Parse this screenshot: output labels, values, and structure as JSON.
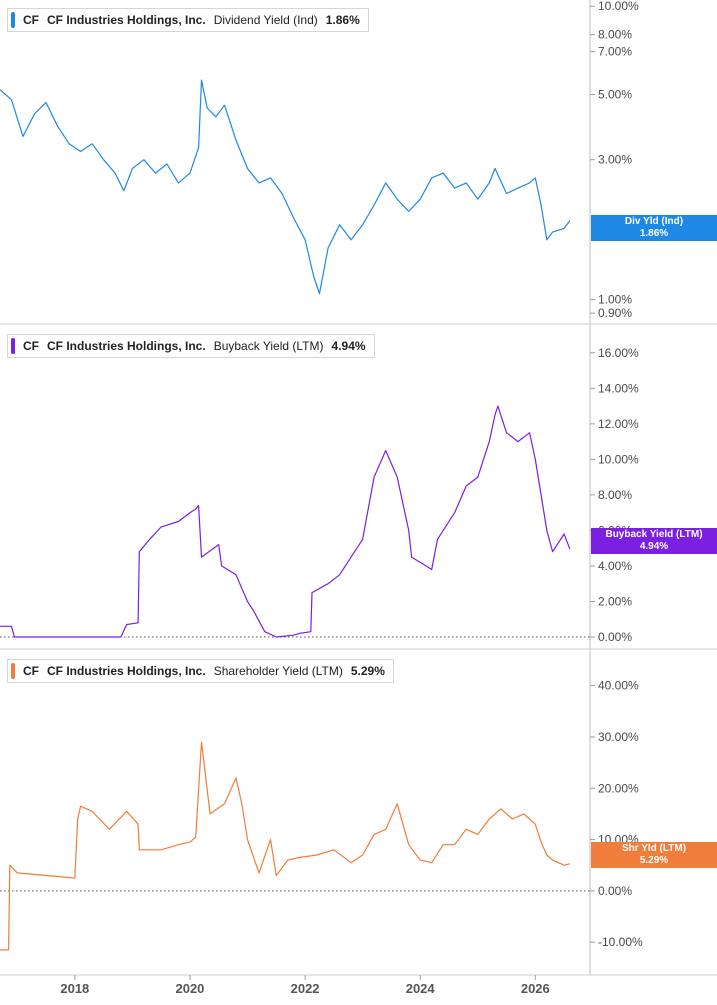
{
  "chart_data": [
    {
      "type": "line",
      "legend": {
        "ticker": "CF",
        "company": "CF Industries Holdings, Inc.",
        "metric": "Dividend Yield (Ind)",
        "value": "1.86%"
      },
      "badge": {
        "label": "Div Yld (Ind)",
        "value": "1.86%"
      },
      "color": "#1e88e5",
      "y_scale": "log",
      "ylim": [
        0.88,
        10.5
      ],
      "yticks": [
        0.9,
        1,
        3,
        5,
        7,
        8,
        10
      ],
      "ytick_labels": [
        "0.90%",
        "1.00%",
        "3.00%",
        "5.00%",
        "7.00%",
        "8.00%",
        "10.00%"
      ],
      "x": [
        2016.7,
        2016.9,
        2017.1,
        2017.3,
        2017.5,
        2017.7,
        2017.9,
        2018.1,
        2018.3,
        2018.5,
        2018.7,
        2018.85,
        2019.0,
        2019.2,
        2019.4,
        2019.6,
        2019.8,
        2020.0,
        2020.15,
        2020.2,
        2020.3,
        2020.45,
        2020.6,
        2020.8,
        2021.0,
        2021.2,
        2021.4,
        2021.6,
        2021.8,
        2022.0,
        2022.15,
        2022.25,
        2022.4,
        2022.6,
        2022.8,
        2023.0,
        2023.2,
        2023.4,
        2023.6,
        2023.8,
        2024.0,
        2024.2,
        2024.4,
        2024.6,
        2024.8,
        2025.0,
        2025.2,
        2025.3,
        2025.5,
        2025.7,
        2025.9,
        2026.0,
        2026.1,
        2026.2,
        2026.3,
        2026.5,
        2026.6
      ],
      "y": [
        5.2,
        4.8,
        3.6,
        4.3,
        4.7,
        3.9,
        3.4,
        3.2,
        3.4,
        3.0,
        2.7,
        2.35,
        2.8,
        3.0,
        2.7,
        2.9,
        2.5,
        2.7,
        3.3,
        5.6,
        4.5,
        4.2,
        4.6,
        3.5,
        2.8,
        2.5,
        2.6,
        2.3,
        1.9,
        1.6,
        1.2,
        1.05,
        1.5,
        1.8,
        1.6,
        1.8,
        2.1,
        2.5,
        2.2,
        2.0,
        2.2,
        2.6,
        2.7,
        2.4,
        2.5,
        2.2,
        2.5,
        2.8,
        2.3,
        2.4,
        2.5,
        2.6,
        2.1,
        1.6,
        1.7,
        1.75,
        1.86
      ]
    },
    {
      "type": "line",
      "legend": {
        "ticker": "CF",
        "company": "CF Industries Holdings, Inc.",
        "metric": "Buyback Yield (LTM)",
        "value": "4.94%"
      },
      "badge": {
        "label": "Buyback Yield (LTM)",
        "value": "4.94%"
      },
      "color": "#7b1fe0",
      "y_scale": "linear",
      "ylim": [
        0,
        17
      ],
      "yticks": [
        0,
        2,
        4,
        6,
        8,
        10,
        12,
        14,
        16
      ],
      "ytick_labels": [
        "0.00%",
        "2.00%",
        "4.00%",
        "6.00%",
        "8.00%",
        "10.00%",
        "12.00%",
        "14.00%",
        "16.00%"
      ],
      "zero_line": true,
      "x": [
        2016.7,
        2016.9,
        2016.95,
        2017.5,
        2018.0,
        2018.5,
        2018.8,
        2018.9,
        2019.1,
        2019.12,
        2019.3,
        2019.5,
        2019.8,
        2020.0,
        2020.1,
        2020.15,
        2020.2,
        2020.5,
        2020.55,
        2020.8,
        2021.0,
        2021.1,
        2021.3,
        2021.5,
        2021.8,
        2021.9,
        2022.1,
        2022.12,
        2022.4,
        2022.6,
        2022.8,
        2023.0,
        2023.2,
        2023.4,
        2023.6,
        2023.8,
        2023.85,
        2024.1,
        2024.2,
        2024.3,
        2024.6,
        2024.8,
        2025.0,
        2025.2,
        2025.3,
        2025.35,
        2025.5,
        2025.7,
        2025.9,
        2026.0,
        2026.1,
        2026.2,
        2026.3,
        2026.5,
        2026.6
      ],
      "y": [
        0.6,
        0.6,
        0.0,
        0.0,
        0.0,
        0.0,
        0.0,
        0.7,
        0.8,
        4.8,
        5.5,
        6.2,
        6.5,
        7.0,
        7.2,
        7.4,
        4.5,
        5.2,
        4.0,
        3.5,
        2.0,
        1.5,
        0.3,
        0.0,
        0.1,
        0.2,
        0.3,
        2.5,
        3.0,
        3.5,
        4.5,
        5.5,
        9.0,
        10.5,
        9.0,
        6.0,
        4.5,
        4.0,
        3.8,
        5.5,
        7.0,
        8.5,
        9.0,
        11.0,
        12.5,
        13.0,
        11.5,
        11.0,
        11.5,
        10.0,
        8.0,
        6.0,
        4.8,
        5.8,
        4.94
      ]
    },
    {
      "type": "line",
      "legend": {
        "ticker": "CF",
        "company": "CF Industries Holdings, Inc.",
        "metric": "Shareholder Yield (LTM)",
        "value": "5.29%"
      },
      "badge": {
        "label": "Shr Yld (LTM)",
        "value": "5.29%"
      },
      "color": "#f07d3a",
      "y_scale": "linear",
      "ylim": [
        -12.5,
        45
      ],
      "yticks": [
        -10,
        0,
        10,
        20,
        30,
        40
      ],
      "ytick_labels": [
        "-10.00%",
        "0.00%",
        "10.00%",
        "20.00%",
        "30.00%",
        "40.00%"
      ],
      "zero_line": true,
      "x": [
        2016.7,
        2016.85,
        2016.87,
        2017.0,
        2017.5,
        2018.0,
        2018.05,
        2018.1,
        2018.3,
        2018.6,
        2018.9,
        2019.1,
        2019.12,
        2019.5,
        2019.8,
        2020.0,
        2020.1,
        2020.2,
        2020.35,
        2020.6,
        2020.8,
        2020.9,
        2021.0,
        2021.2,
        2021.4,
        2021.5,
        2021.7,
        2021.9,
        2022.2,
        2022.5,
        2022.8,
        2023.0,
        2023.2,
        2023.4,
        2023.6,
        2023.8,
        2024.0,
        2024.2,
        2024.4,
        2024.6,
        2024.8,
        2025.0,
        2025.2,
        2025.4,
        2025.6,
        2025.8,
        2026.0,
        2026.1,
        2026.2,
        2026.3,
        2026.5,
        2026.6
      ],
      "y": [
        -11.5,
        -11.5,
        5.0,
        3.5,
        3.0,
        2.5,
        14.0,
        16.5,
        15.5,
        12.0,
        15.5,
        13.0,
        8.0,
        8.0,
        9.0,
        9.5,
        10.5,
        29.0,
        15.0,
        17.0,
        22.0,
        17.0,
        10.0,
        3.5,
        10.0,
        3.0,
        6.0,
        6.5,
        7.0,
        8.0,
        5.5,
        7.0,
        11.0,
        12.0,
        17.0,
        9.0,
        6.0,
        5.5,
        9.0,
        9.0,
        12.0,
        11.0,
        14.0,
        16.0,
        14.0,
        15.0,
        13.0,
        9.5,
        7.0,
        6.0,
        5.0,
        5.29
      ]
    }
  ],
  "x_axis": {
    "xlim": [
      2016.7,
      2026.95
    ],
    "ticks": [
      2018,
      2020,
      2022,
      2024,
      2026
    ],
    "tick_labels": [
      "2018",
      "2020",
      "2022",
      "2024",
      "2026"
    ]
  }
}
